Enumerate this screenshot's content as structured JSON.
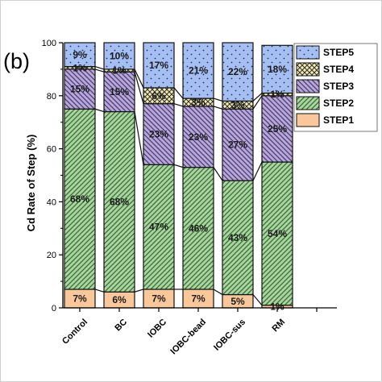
{
  "panel_label": "(b)",
  "chart_data": {
    "type": "bar",
    "stacked": true,
    "categories": [
      "Control",
      "BC",
      "IOBC",
      "IOBC-bead",
      "IOBC-sus",
      "RM"
    ],
    "ylabel": "Cd  Rate of Step (%)",
    "ylim": [
      0,
      100
    ],
    "yticks": [
      0,
      20,
      40,
      60,
      80,
      100
    ],
    "legend_position": "top-right",
    "series": [
      {
        "name": "STEP1",
        "values": [
          7,
          6,
          7,
          7,
          5,
          1
        ],
        "color": "#f9c79a",
        "pattern": "none",
        "labels": [
          "7%",
          "6%",
          "7%",
          "7%",
          "5%",
          "1%"
        ]
      },
      {
        "name": "STEP2",
        "values": [
          68,
          68,
          47,
          46,
          43,
          54
        ],
        "color": "#a9d5a0",
        "pattern": "diag-right",
        "labels": [
          "68%",
          "68%",
          "47%",
          "46%",
          "43%",
          "54%"
        ]
      },
      {
        "name": "STEP3",
        "values": [
          15,
          15,
          23,
          23,
          27,
          25
        ],
        "color": "#b7a8d6",
        "pattern": "diag-left",
        "labels": [
          "15%",
          "15%",
          "23%",
          "23%",
          "27%",
          "25%"
        ]
      },
      {
        "name": "STEP4",
        "values": [
          1,
          1,
          6,
          3,
          3,
          1
        ],
        "color": "#f6ecb0",
        "pattern": "cross",
        "labels": [
          "1%",
          "1%",
          "6%",
          "3%",
          "3%",
          "1%"
        ]
      },
      {
        "name": "STEP5",
        "values": [
          9,
          10,
          17,
          21,
          22,
          18
        ],
        "color": "#a6bff2",
        "pattern": "dots",
        "labels": [
          "9%",
          "10%",
          "17%",
          "21%",
          "22%",
          "18%"
        ]
      }
    ]
  }
}
